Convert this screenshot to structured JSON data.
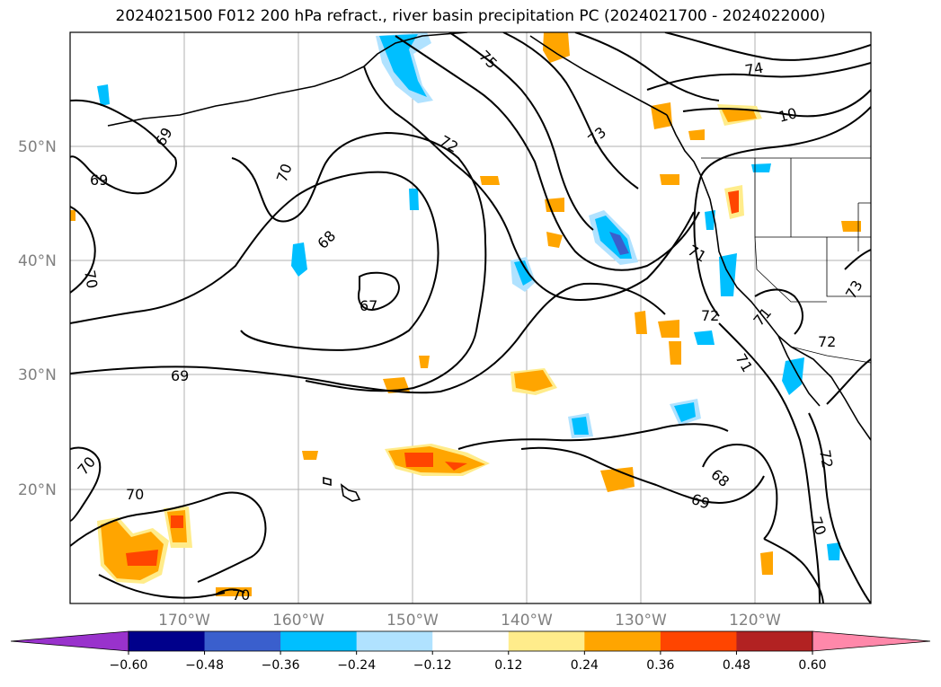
{
  "title": "2024021500 F012 200 hPa refract., river basin precipitation PC (2024021700 - 2024022000)",
  "latitude_labels": [
    "50°N",
    "40°N",
    "30°N",
    "20°N"
  ],
  "longitude_labels": [
    "170°W",
    "160°W",
    "150°W",
    "140°W",
    "130°W",
    "120°W"
  ],
  "contour_labels": [
    "75",
    "74",
    "72",
    "73",
    "10",
    "69",
    "69",
    "70",
    "68",
    "67",
    "70",
    "69",
    "71",
    "72",
    "71",
    "71",
    "72",
    "73",
    "68",
    "69",
    "70",
    "72",
    "70",
    "70",
    "70"
  ],
  "colorbar": {
    "ticks": [
      "−0.60",
      "−0.48",
      "−0.36",
      "−0.24",
      "−0.12",
      "0.12",
      "0.24",
      "0.36",
      "0.48",
      "0.60"
    ],
    "colors": [
      "#9932CC",
      "#00008B",
      "#3A5FCD",
      "#00BFFF",
      "#B0E2FF",
      "#FFFFFF",
      "#FFEC8B",
      "#FFA500",
      "#FF4500",
      "#B22222",
      "#FF88AA"
    ]
  },
  "colors": {
    "neg_light": "#B0E2FF",
    "neg_mid": "#00BFFF",
    "neg_strong": "#3A5FCD",
    "pos_light": "#FFEC8B",
    "pos_mid": "#FFA500",
    "pos_strong": "#FF4500",
    "grid": "#b0b0b0"
  }
}
